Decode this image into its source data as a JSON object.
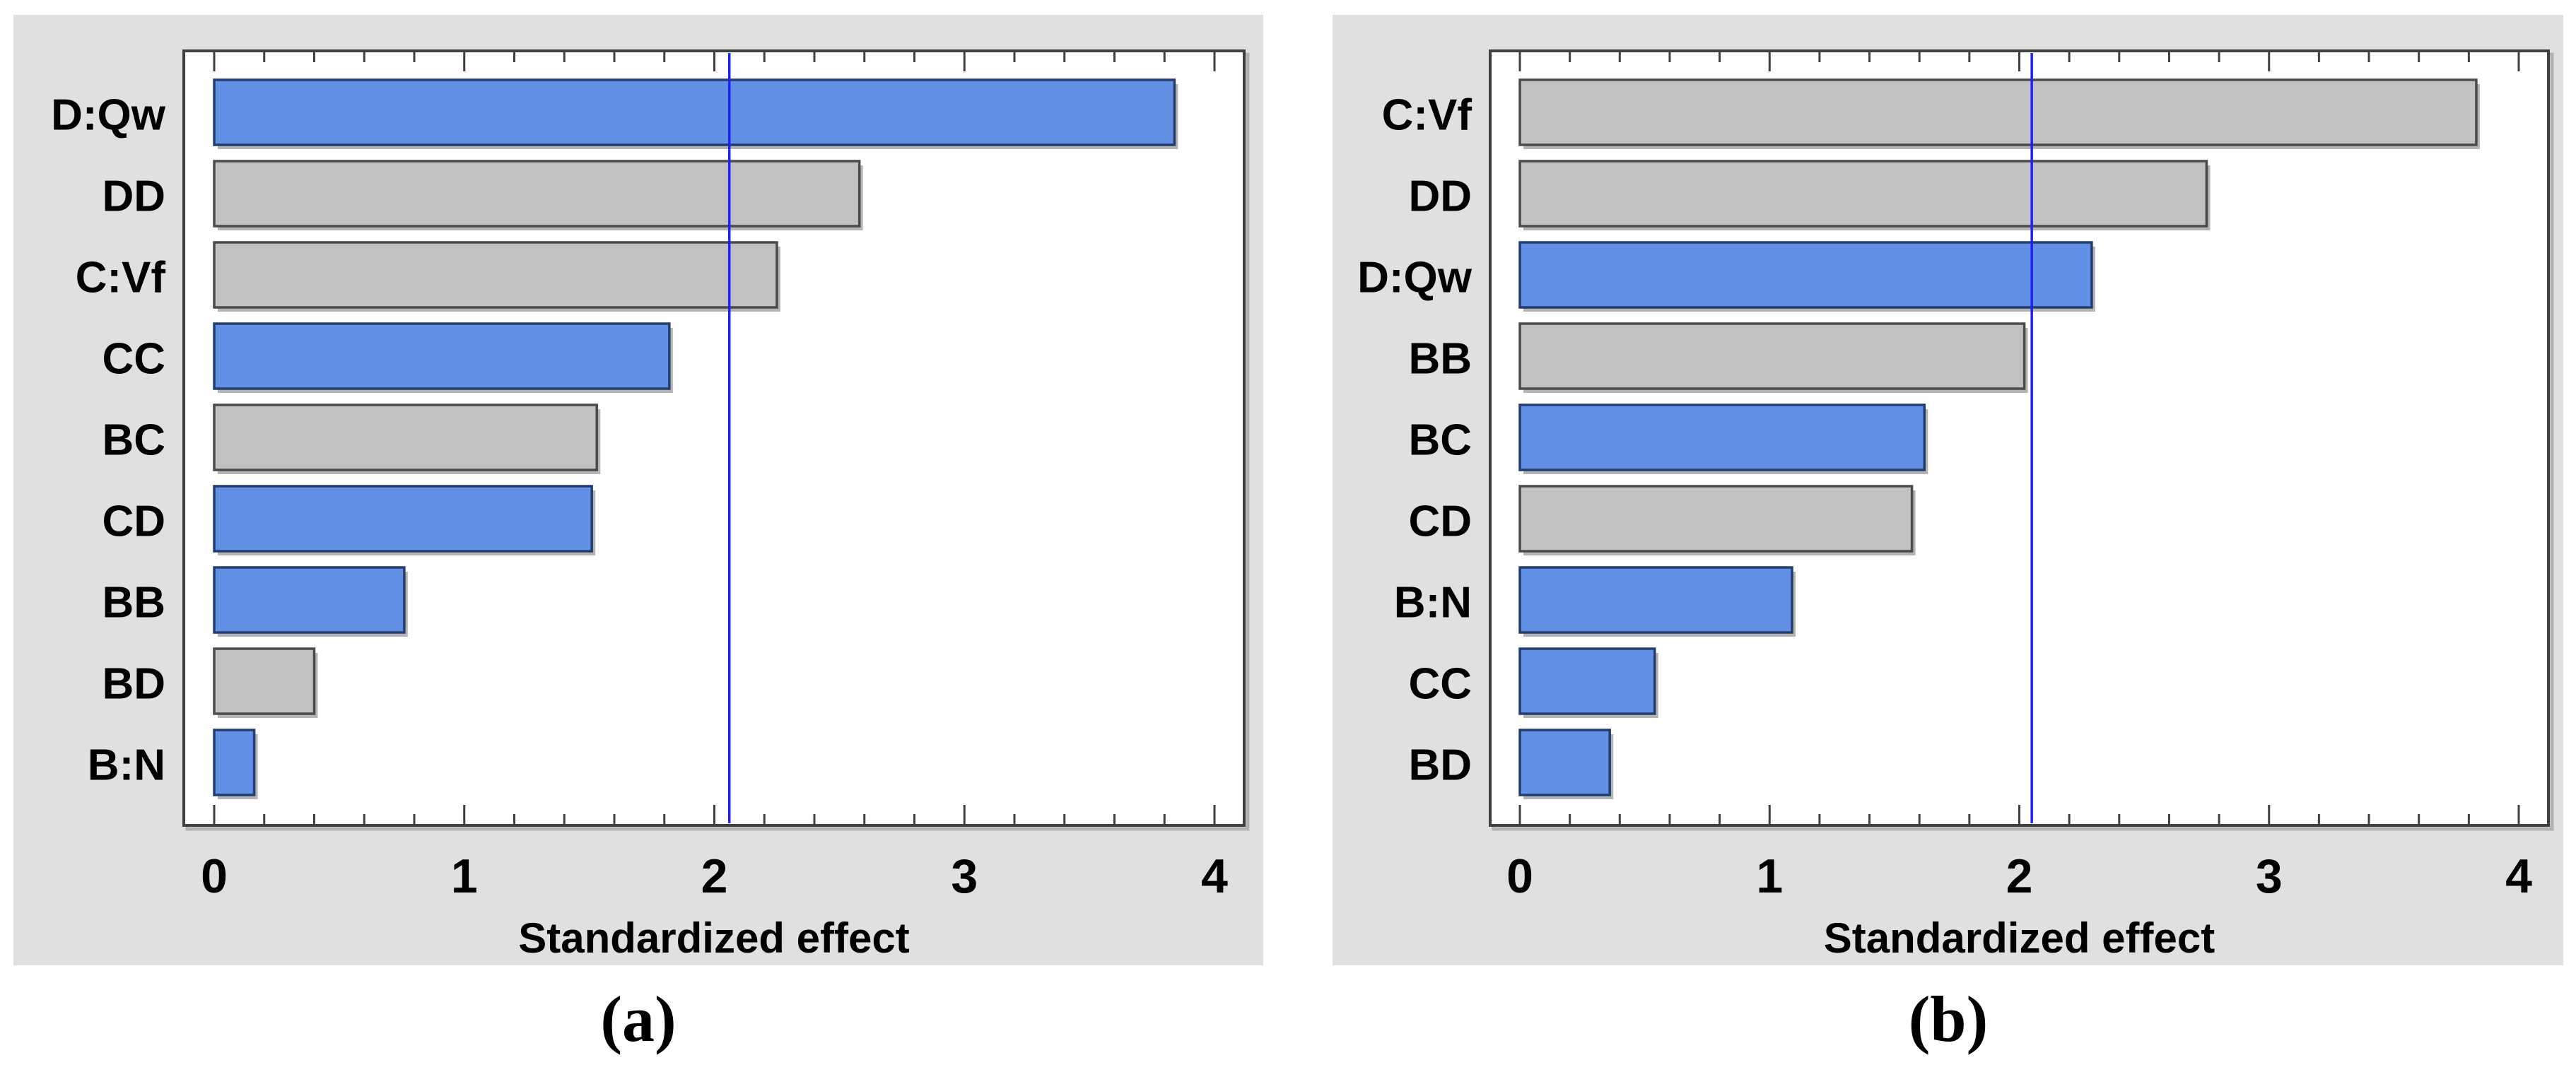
{
  "figure": {
    "background": "#ffffff",
    "panel_bg": "#e0e0e0",
    "plot_bg": "#ffffff",
    "frame_color": "#3f3f3f",
    "tick_color": "#3f3f3f",
    "bar_blue": "#6190e6",
    "bar_blue_border": "#233e6e",
    "bar_gray": "#c1c1c1",
    "bar_gray_border": "#4a4a4a",
    "shadow_color": "#9b9b9b",
    "ref_line_color": "#2121ef",
    "text_color": "#000000"
  },
  "chart_data": [
    {
      "type": "bar",
      "orientation": "horizontal",
      "caption": "(a)",
      "xlabel": "Standardized effect",
      "xlim": [
        0,
        4
      ],
      "x_ticks": [
        "0",
        "1",
        "2",
        "3",
        "4"
      ],
      "x_minor_step": 0.2,
      "ref_line": 2.06,
      "grid": false,
      "legend": "none",
      "categories": [
        "D:Qw",
        "DD",
        "C:Vf",
        "CC",
        "BC",
        "CD",
        "BB",
        "BD",
        "B:N"
      ],
      "bars": [
        {
          "label": "D:Qw",
          "value": 3.84,
          "color": "blue"
        },
        {
          "label": "DD",
          "value": 2.58,
          "color": "gray"
        },
        {
          "label": "C:Vf",
          "value": 2.25,
          "color": "gray"
        },
        {
          "label": "CC",
          "value": 1.82,
          "color": "blue"
        },
        {
          "label": "BC",
          "value": 1.53,
          "color": "gray"
        },
        {
          "label": "CD",
          "value": 1.51,
          "color": "blue"
        },
        {
          "label": "BB",
          "value": 0.76,
          "color": "blue"
        },
        {
          "label": "BD",
          "value": 0.4,
          "color": "gray"
        },
        {
          "label": "B:N",
          "value": 0.16,
          "color": "blue"
        }
      ]
    },
    {
      "type": "bar",
      "orientation": "horizontal",
      "caption": "(b)",
      "xlabel": "Standardized effect",
      "xlim": [
        0,
        4
      ],
      "x_ticks": [
        "0",
        "1",
        "2",
        "3",
        "4"
      ],
      "x_minor_step": 0.2,
      "ref_line": 2.05,
      "grid": false,
      "legend": "none",
      "categories": [
        "C:Vf",
        "DD",
        "D:Qw",
        "BB",
        "BC",
        "CD",
        "B:N",
        "CC",
        "BD"
      ],
      "bars": [
        {
          "label": "C:Vf",
          "value": 3.83,
          "color": "gray"
        },
        {
          "label": "DD",
          "value": 2.75,
          "color": "gray"
        },
        {
          "label": "D:Qw",
          "value": 2.29,
          "color": "blue"
        },
        {
          "label": "BB",
          "value": 2.02,
          "color": "gray"
        },
        {
          "label": "BC",
          "value": 1.62,
          "color": "blue"
        },
        {
          "label": "CD",
          "value": 1.57,
          "color": "gray"
        },
        {
          "label": "B:N",
          "value": 1.09,
          "color": "blue"
        },
        {
          "label": "CC",
          "value": 0.54,
          "color": "blue"
        },
        {
          "label": "BD",
          "value": 0.36,
          "color": "blue"
        }
      ]
    }
  ]
}
